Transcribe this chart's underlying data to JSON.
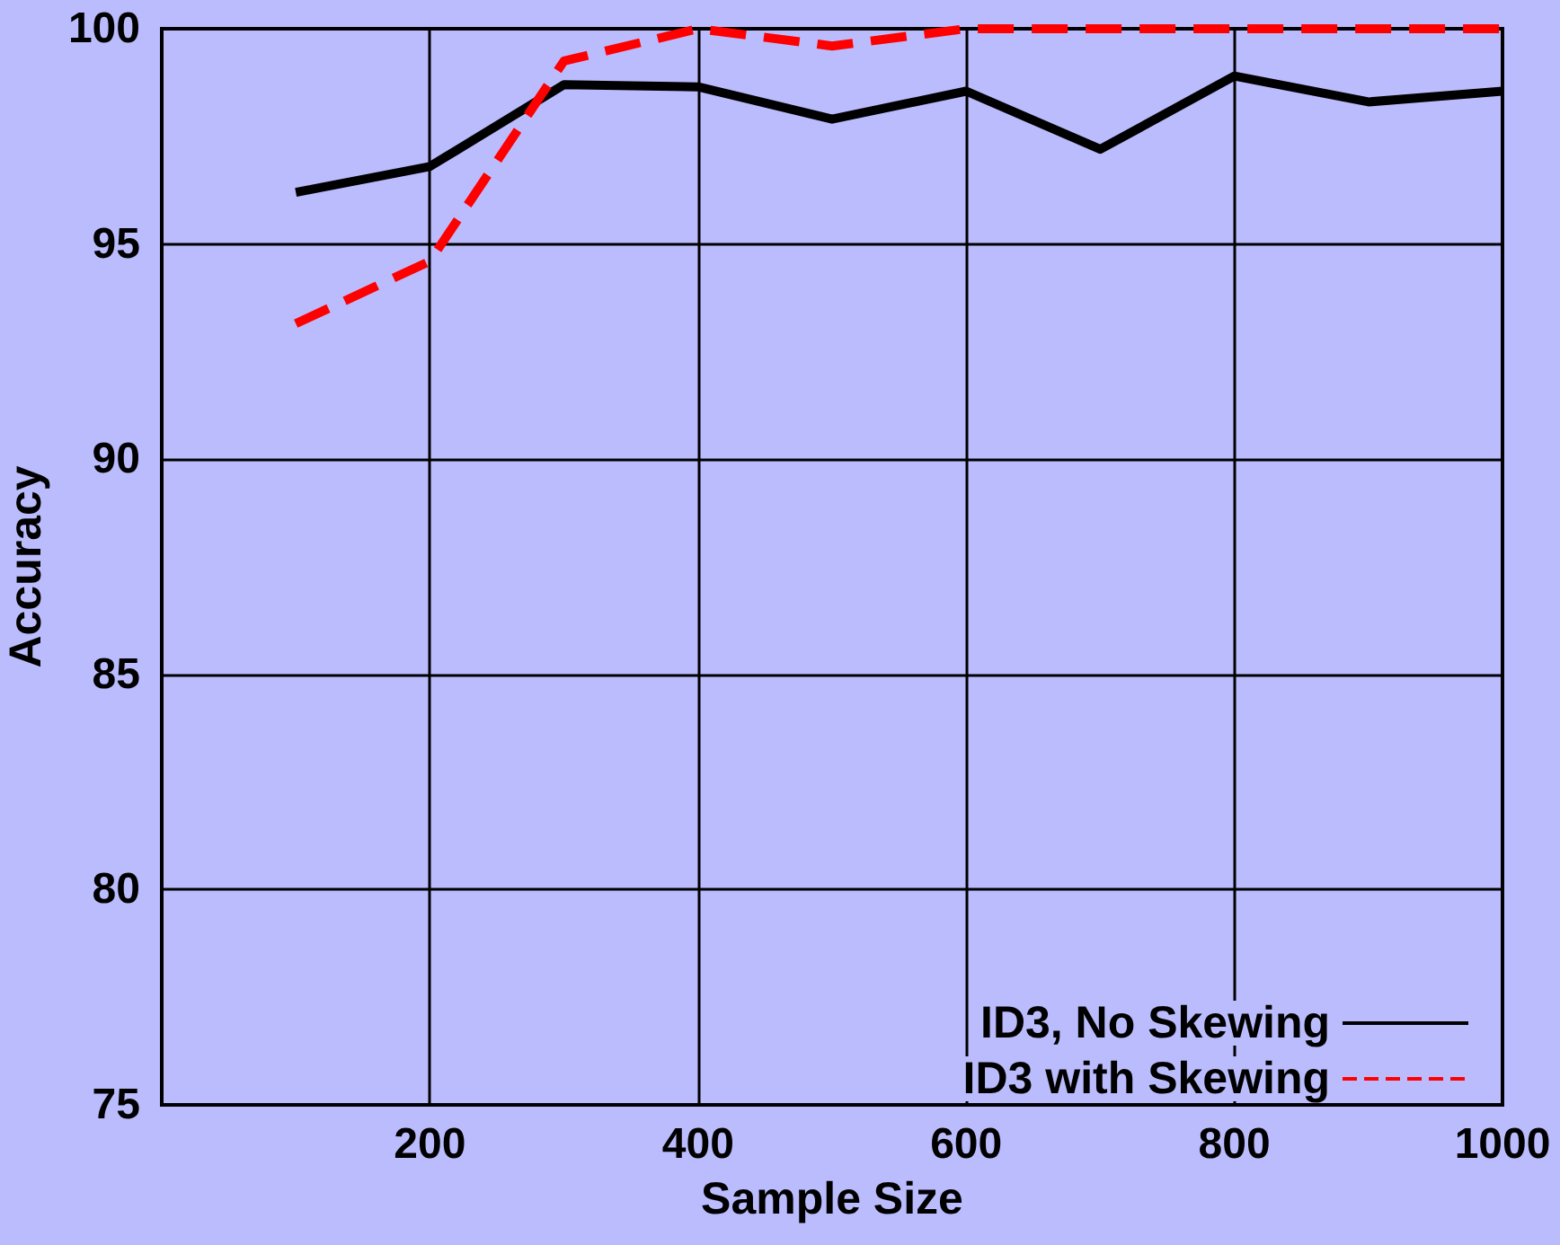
{
  "chart_data": {
    "type": "line",
    "xlabel": "Sample Size",
    "ylabel": "Accuracy",
    "x": [
      100,
      200,
      300,
      400,
      500,
      600,
      700,
      800,
      900,
      1000
    ],
    "series": [
      {
        "name": "ID3, No Skewing",
        "color": "#000000",
        "line_style": "solid",
        "values": [
          96.2,
          96.8,
          98.7,
          98.65,
          97.9,
          98.55,
          97.2,
          98.9,
          98.3,
          98.55
        ]
      },
      {
        "name": "ID3 with Skewing",
        "color": "#ff0000",
        "line_style": "dashed",
        "values": [
          93.15,
          94.6,
          99.25,
          100,
          99.6,
          100,
          100,
          100,
          100,
          100
        ]
      }
    ],
    "xlim": [
      0,
      1000
    ],
    "xticks": [
      200,
      400,
      600,
      800,
      {
        "value": 1000,
        "label": "1000"
      }
    ],
    "ylim": [
      75,
      100
    ],
    "yticks": [
      75,
      80,
      85,
      90,
      95,
      100
    ],
    "grid": true,
    "legend": "bottom right",
    "marker": "none"
  }
}
